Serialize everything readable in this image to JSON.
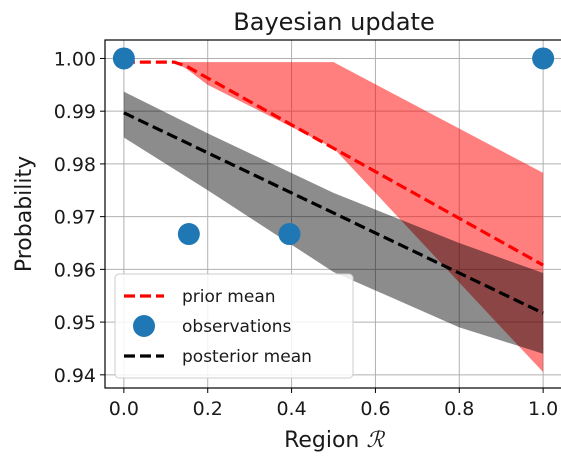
{
  "chart_data": {
    "type": "line",
    "title": "Bayesian update",
    "xlabel": "Region ",
    "xlabel_symbol": "ℛ",
    "ylabel": "Probability",
    "xlim": [
      -0.045,
      1.045
    ],
    "ylim": [
      0.9375,
      1.0035
    ],
    "x_ticks": [
      0.0,
      0.2,
      0.4,
      0.6,
      0.8,
      1.0
    ],
    "x_tick_labels": [
      "0.0",
      "0.2",
      "0.4",
      "0.6",
      "0.8",
      "1.0"
    ],
    "y_ticks": [
      0.94,
      0.95,
      0.96,
      0.97,
      0.98,
      0.99,
      1.0
    ],
    "y_tick_labels": [
      "0.94",
      "0.95",
      "0.96",
      "0.97",
      "0.98",
      "0.99",
      "1.00"
    ],
    "grid": true,
    "legend_position": "lower-left",
    "series": [
      {
        "name": "prior mean",
        "kind": "dashed-line",
        "color": "#ff0000",
        "x": [
          0.0,
          0.12,
          0.15,
          1.0
        ],
        "y": [
          0.9993,
          0.9993,
          0.9985,
          0.9608
        ]
      },
      {
        "name": "observations",
        "kind": "markers",
        "color": "#1f77b4",
        "x": [
          0.0,
          0.155,
          0.395,
          1.0
        ],
        "y": [
          1.0,
          0.9667,
          0.9667,
          1.0
        ]
      },
      {
        "name": "posterior mean",
        "kind": "dashed-line",
        "color": "#000000",
        "x": [
          0.0,
          1.0
        ],
        "y": [
          0.9897,
          0.9517
        ]
      }
    ],
    "bands": [
      {
        "label": "prior band",
        "color": "#ff0000",
        "opacity": 0.5,
        "x": [
          0.0,
          0.12,
          0.15,
          0.2,
          0.5,
          1.0
        ],
        "upper": [
          0.9993,
          0.9993,
          0.9993,
          0.9993,
          0.9993,
          0.9783
        ],
        "lower": [
          0.9993,
          0.9993,
          0.998,
          0.995,
          0.983,
          0.9405
        ]
      },
      {
        "label": "posterior band",
        "color": "#000000",
        "opacity": 0.45,
        "x": [
          0.0,
          0.2,
          0.5,
          0.8,
          1.0
        ],
        "upper": [
          0.9937,
          0.9858,
          0.9745,
          0.965,
          0.9593
        ],
        "lower": [
          0.985,
          0.975,
          0.9595,
          0.949,
          0.944
        ]
      }
    ]
  }
}
